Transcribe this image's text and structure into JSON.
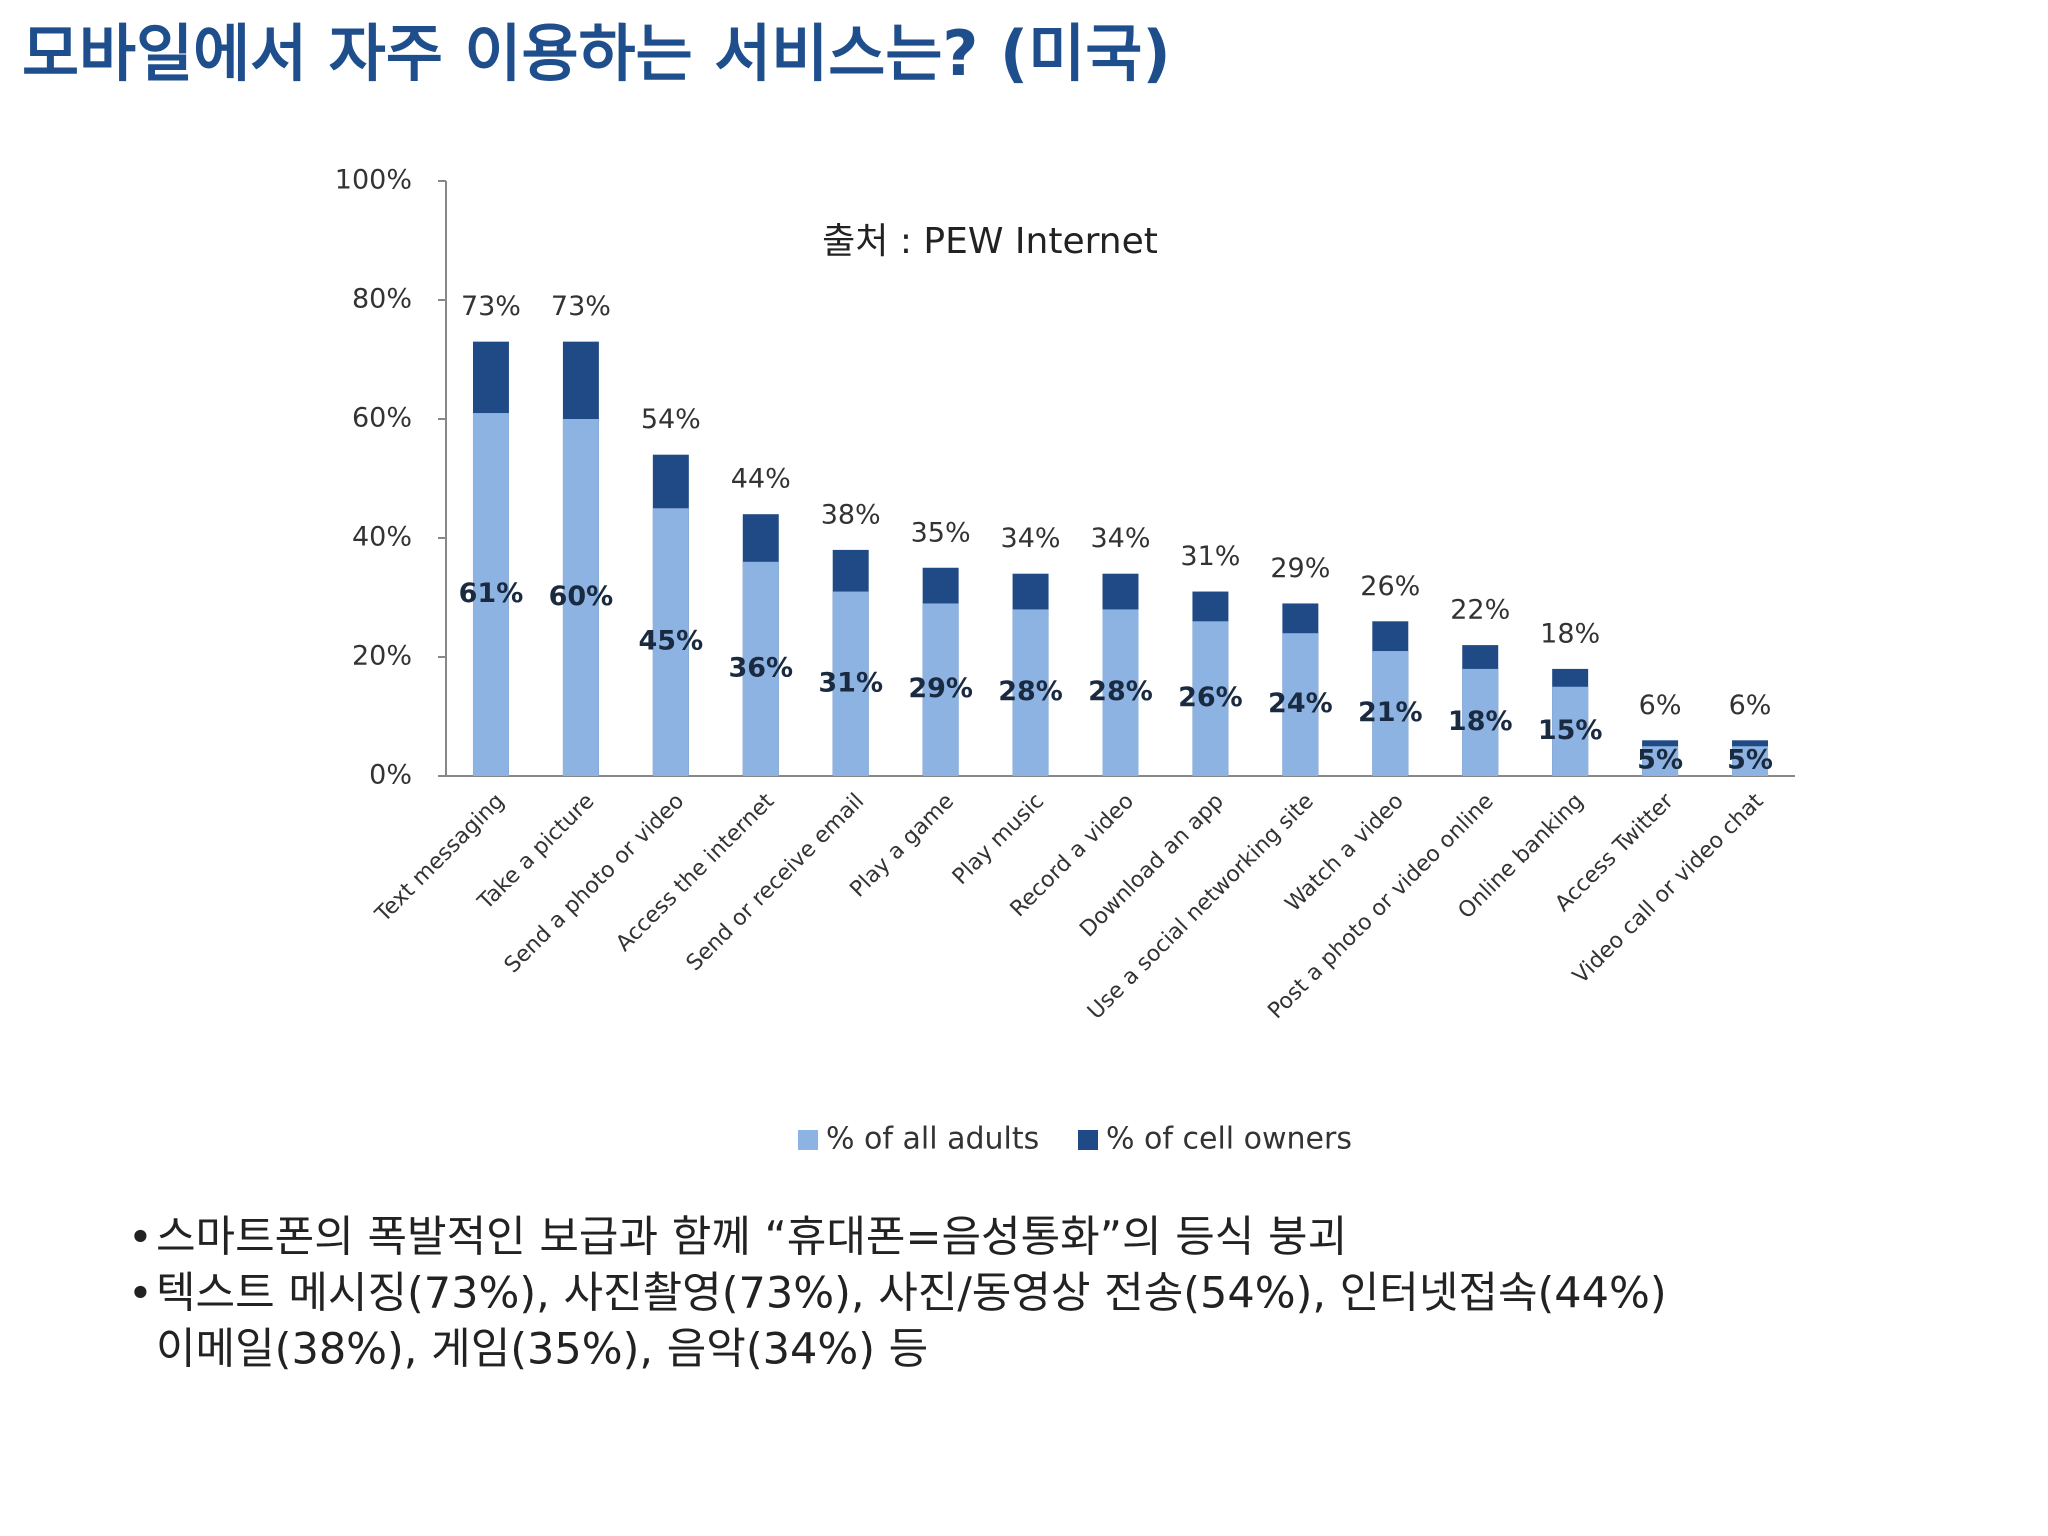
{
  "chart_data": {
    "type": "bar",
    "title": "모바일에서 자주 이용하는 서비스는? (미국)",
    "annotation": "출처 : PEW Internet",
    "categories": [
      "Text messaging",
      "Take a picture",
      "Send a photo or video",
      "Access the internet",
      "Send or receive email",
      "Play a game",
      "Play music",
      "Record a video",
      "Download an app",
      "Use a social networking site",
      "Watch a video",
      "Post a photo or video online",
      "Online banking",
      "Access Twitter",
      "Video call or video chat"
    ],
    "series": [
      {
        "name": "% of cell owners",
        "color": "#1f4a85",
        "values": [
          73,
          73,
          54,
          44,
          38,
          35,
          34,
          34,
          31,
          29,
          26,
          22,
          18,
          6,
          6
        ],
        "value_labels": [
          "73%",
          "73%",
          "54%",
          "44%",
          "38%",
          "35%",
          "34%",
          "34%",
          "31%",
          "29%",
          "26%",
          "22%",
          "18%",
          "6%",
          "6%"
        ]
      },
      {
        "name": "% of all adults",
        "color": "#8db3e2",
        "values": [
          61,
          60,
          45,
          36,
          31,
          29,
          28,
          28,
          26,
          24,
          21,
          18,
          15,
          5,
          5
        ],
        "value_labels": [
          "61%",
          "60%",
          "45%",
          "36%",
          "31%",
          "29%",
          "28%",
          "28%",
          "26%",
          "24%",
          "21%",
          "18%",
          "15%",
          "5%",
          "5%"
        ]
      }
    ],
    "ylim": [
      0,
      100
    ],
    "yticks": [
      {
        "value": 0,
        "label": "0%"
      },
      {
        "value": 20,
        "label": "20%"
      },
      {
        "value": 40,
        "label": "40%"
      },
      {
        "value": 60,
        "label": "60%"
      },
      {
        "value": 80,
        "label": "80%"
      },
      {
        "value": 100,
        "label": "100%"
      }
    ],
    "legend": "bottom"
  },
  "bullets": [
    [
      "스마트폰의 폭발적인 보급과 함께 “휴대폰=음성통화”의 등식 붕괴"
    ],
    [
      "텍스트 메시징(73%), 사진촬영(73%), 사진/동영상 전송(54%), 인터넷접속(44%)",
      "이메일(38%), 게임(35%), 음악(34%) 등"
    ]
  ]
}
